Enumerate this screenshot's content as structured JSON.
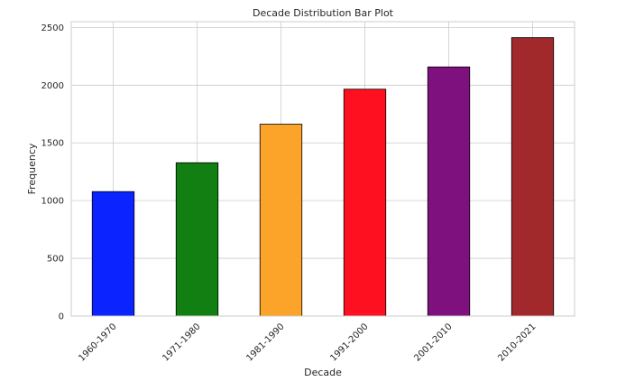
{
  "chart_data": {
    "type": "bar",
    "title": "Decade Distribution Bar Plot",
    "xlabel": "Decade",
    "ylabel": "Frequency",
    "categories": [
      "1960-1970",
      "1971-1980",
      "1981-1990",
      "1991-2000",
      "2001-2010",
      "2010-2021"
    ],
    "values": [
      1078,
      1328,
      1662,
      1965,
      2158,
      2412
    ],
    "colors": [
      "#0a23ff",
      "#117f11",
      "#fca42a",
      "#ff1021",
      "#7e117e",
      "#a1292b"
    ],
    "ylim": [
      0,
      2550
    ],
    "yticks": [
      0,
      500,
      1000,
      1500,
      2000,
      2500
    ],
    "grid": true,
    "legend": "none"
  }
}
